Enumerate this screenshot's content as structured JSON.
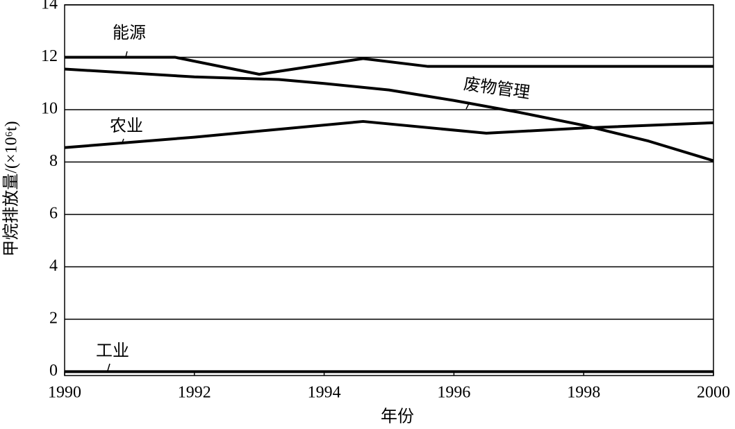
{
  "chart_data": {
    "type": "line",
    "x_label": "年份",
    "y_label": "甲烷排放量/(×10⁶t)",
    "xlim": [
      1990,
      2000
    ],
    "xticks": [
      1990,
      1992,
      1994,
      1996,
      1998,
      2000
    ],
    "ylim": [
      -0.15,
      14
    ],
    "yticks": [
      0,
      2,
      4,
      6,
      8,
      10,
      12,
      14
    ],
    "grid": true,
    "series": [
      {
        "name": "能源",
        "color": "#000000",
        "x": [
          1990,
          1991.7,
          1993,
          1994.6,
          1995.6,
          2000
        ],
        "values": [
          12,
          12,
          11.35,
          11.95,
          11.65,
          11.65
        ]
      },
      {
        "name": "废物管理",
        "color": "#000000",
        "x": [
          1990,
          1992,
          1993.3,
          1994,
          1995,
          1996,
          1997,
          1998,
          1999,
          2000
        ],
        "values": [
          11.55,
          11.25,
          11.15,
          11.0,
          10.75,
          10.35,
          9.9,
          9.4,
          8.8,
          8.05
        ]
      },
      {
        "name": "农业",
        "color": "#000000",
        "x": [
          1990,
          1992,
          1994.6,
          1996.5,
          1998,
          2000
        ],
        "values": [
          8.55,
          8.95,
          9.55,
          9.1,
          9.3,
          9.5
        ]
      },
      {
        "name": "工业",
        "color": "#000000",
        "x": [
          1990,
          2000
        ],
        "values": [
          0,
          0
        ]
      }
    ]
  }
}
